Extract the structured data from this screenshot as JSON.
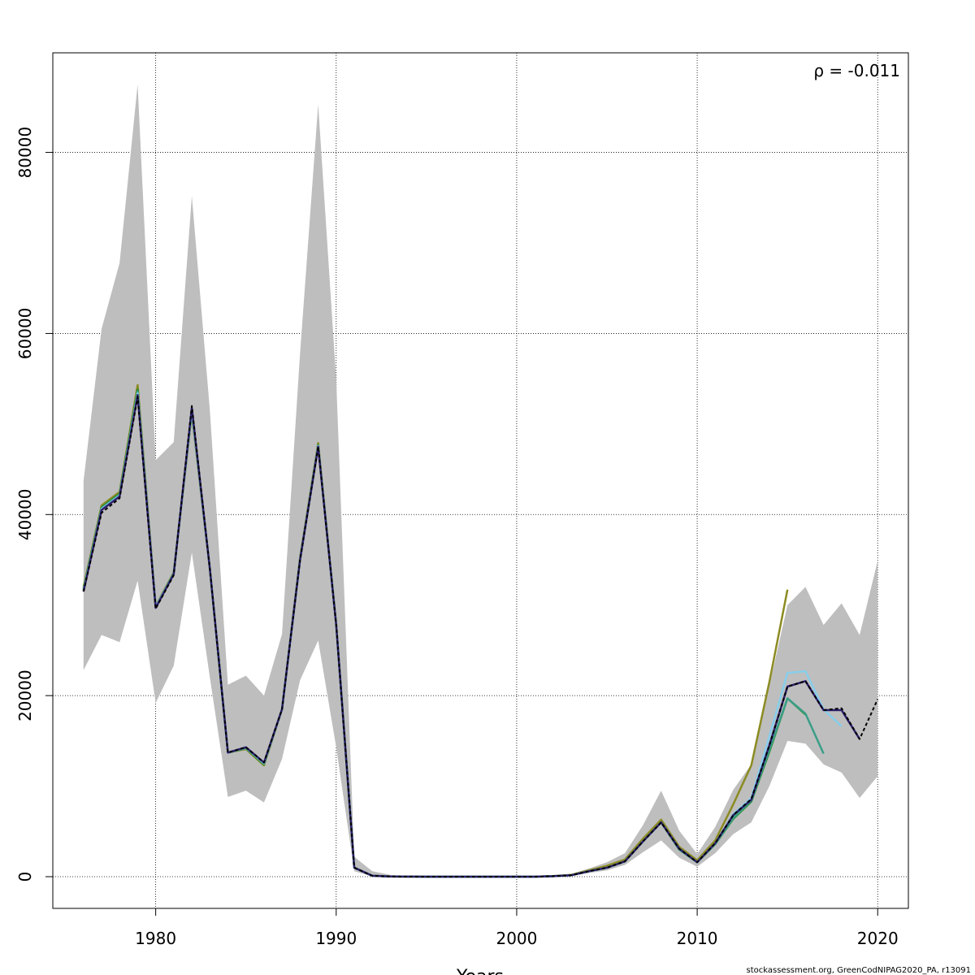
{
  "chart_data": {
    "type": "line",
    "title": "",
    "xlabel": "Years",
    "ylabel": "",
    "xlim": [
      1974.3,
      2021.7
    ],
    "ylim": [
      -3500,
      91000
    ],
    "xticks": [
      1980,
      1990,
      2000,
      2010,
      2020
    ],
    "yticks": [
      0,
      20000,
      40000,
      60000,
      80000
    ],
    "grid": true,
    "annotation": "ρ = -0.011",
    "footer": "stockassessment.org, GreenCodNIPAG2020_PA, r13091",
    "band": {
      "color": "#bebebe",
      "x": [
        1976,
        1977,
        1978,
        1979,
        1980,
        1981,
        1982,
        1983,
        1984,
        1985,
        1986,
        1987,
        1988,
        1989,
        1990,
        1991,
        1992,
        1993,
        1994,
        1995,
        1996,
        1997,
        1998,
        1999,
        2000,
        2001,
        2002,
        2003,
        2004,
        2005,
        2006,
        2007,
        2008,
        2009,
        2010,
        2011,
        2012,
        2013,
        2014,
        2015,
        2016,
        2017,
        2018,
        2019,
        2020
      ],
      "lower": [
        22800,
        26700,
        25900,
        32700,
        19200,
        23300,
        35800,
        22000,
        8800,
        9500,
        8200,
        13000,
        21700,
        26100,
        14300,
        600,
        20,
        0,
        0,
        0,
        0,
        0,
        0,
        0,
        0,
        0,
        0,
        50,
        400,
        700,
        1300,
        2700,
        4000,
        2100,
        1100,
        2600,
        4700,
        6000,
        10000,
        15000,
        14700,
        12400,
        11500,
        8700,
        11100
      ],
      "upper": [
        43700,
        60500,
        67800,
        87500,
        46000,
        48000,
        75200,
        51500,
        21200,
        22200,
        20000,
        26800,
        57800,
        85300,
        54900,
        2200,
        600,
        200,
        100,
        0,
        0,
        0,
        0,
        0,
        0,
        0,
        100,
        300,
        900,
        1600,
        2600,
        5700,
        9500,
        5100,
        2500,
        5500,
        9600,
        12400,
        21100,
        30000,
        32000,
        27800,
        30200,
        26700,
        34900
      ]
    },
    "series": [
      {
        "color": "#000000",
        "dashed": true,
        "x": [
          1976,
          1977,
          1978,
          1979,
          1980,
          1981,
          1982,
          1983,
          1984,
          1985,
          1986,
          1987,
          1988,
          1989,
          1990,
          1991,
          1992,
          1993,
          1994,
          1995,
          1996,
          1997,
          1998,
          1999,
          2000,
          2001,
          2002,
          2003,
          2004,
          2005,
          2006,
          2007,
          2008,
          2009,
          2010,
          2011,
          2012,
          2013,
          2014,
          2015,
          2016,
          2017,
          2018,
          2019,
          2020
        ],
        "values": [
          31500,
          40200,
          41800,
          53000,
          29600,
          33300,
          52000,
          34000,
          13700,
          14300,
          12600,
          18500,
          35000,
          47500,
          27800,
          1000,
          100,
          20,
          10,
          0,
          0,
          0,
          0,
          0,
          0,
          0,
          50,
          150,
          600,
          1000,
          1700,
          3900,
          6000,
          3100,
          1600,
          3700,
          6800,
          8600,
          14500,
          21000,
          21600,
          18400,
          18600,
          15200,
          19600
        ]
      },
      {
        "color": "#2e1f6e",
        "dashed": false,
        "x": [
          1976,
          1977,
          1978,
          1979,
          1980,
          1981,
          1982,
          1983,
          1984,
          1985,
          1986,
          1987,
          1988,
          1989,
          1990,
          1991,
          1992,
          1993,
          1994,
          1995,
          1996,
          1997,
          1998,
          1999,
          2000,
          2001,
          2002,
          2003,
          2004,
          2005,
          2006,
          2007,
          2008,
          2009,
          2010,
          2011,
          2012,
          2013,
          2014,
          2015,
          2016,
          2017,
          2018,
          2019
        ],
        "values": [
          31500,
          40500,
          42000,
          53200,
          29700,
          33400,
          51800,
          34000,
          13700,
          14300,
          12600,
          18500,
          35000,
          47500,
          27800,
          1000,
          100,
          20,
          10,
          0,
          0,
          0,
          0,
          0,
          0,
          0,
          50,
          150,
          600,
          1000,
          1700,
          3900,
          6000,
          3100,
          1600,
          3700,
          6800,
          8500,
          14500,
          21000,
          21600,
          18400,
          18400,
          15200
        ]
      },
      {
        "color": "#87ceeb",
        "dashed": false,
        "x": [
          1976,
          1977,
          1978,
          1979,
          1980,
          1981,
          1982,
          1983,
          1984,
          1985,
          1986,
          1987,
          1988,
          1989,
          1990,
          1991,
          1992,
          1993,
          1994,
          1995,
          1996,
          1997,
          1998,
          1999,
          2000,
          2001,
          2002,
          2003,
          2004,
          2005,
          2006,
          2007,
          2008,
          2009,
          2010,
          2011,
          2012,
          2013,
          2014,
          2015,
          2016,
          2017,
          2018
        ],
        "values": [
          31600,
          40600,
          42100,
          53400,
          29800,
          33400,
          51600,
          34000,
          13700,
          14300,
          12500,
          18500,
          35000,
          47600,
          27800,
          1000,
          100,
          20,
          10,
          0,
          0,
          0,
          0,
          0,
          0,
          0,
          50,
          150,
          600,
          1000,
          1700,
          3900,
          6000,
          3100,
          1600,
          3700,
          6900,
          8700,
          15500,
          22500,
          22700,
          18500,
          16600
        ]
      },
      {
        "color": "#3a9e88",
        "dashed": false,
        "x": [
          1976,
          1977,
          1978,
          1979,
          1980,
          1981,
          1982,
          1983,
          1984,
          1985,
          1986,
          1987,
          1988,
          1989,
          1990,
          1991,
          1992,
          1993,
          1994,
          1995,
          1996,
          1997,
          1998,
          1999,
          2000,
          2001,
          2002,
          2003,
          2004,
          2005,
          2006,
          2007,
          2008,
          2009,
          2010,
          2011,
          2012,
          2013,
          2014,
          2015,
          2016,
          2017
        ],
        "values": [
          31700,
          40700,
          42200,
          53600,
          29800,
          33500,
          51500,
          34000,
          13700,
          14200,
          12500,
          18500,
          35000,
          47600,
          27800,
          1000,
          100,
          20,
          10,
          0,
          0,
          0,
          0,
          0,
          0,
          0,
          50,
          150,
          600,
          1000,
          1700,
          3900,
          6000,
          3000,
          1600,
          3600,
          6500,
          8400,
          14000,
          19700,
          18000,
          13600
        ]
      },
      {
        "color": "#228b22",
        "dashed": false,
        "x": [
          1976,
          1977,
          1978,
          1979,
          1980,
          1981,
          1982,
          1983,
          1984,
          1985,
          1986,
          1987,
          1988,
          1989,
          1990,
          1991,
          1992,
          1993,
          1994,
          1995,
          1996,
          1997,
          1998,
          1999,
          2000,
          2001,
          2002,
          2003,
          2004,
          2005,
          2006,
          2007,
          2008,
          2009,
          2010,
          2011,
          2012,
          2013,
          2014,
          2015,
          2016
        ],
        "values": [
          31800,
          40800,
          42300,
          53800,
          29800,
          33500,
          51400,
          34000,
          13700,
          14200,
          12400,
          18500,
          35100,
          47700,
          27800,
          1000,
          100,
          20,
          10,
          0,
          0,
          0,
          0,
          0,
          0,
          0,
          50,
          150,
          600,
          1000,
          1700,
          3900,
          6000,
          3000,
          1600,
          3600,
          6400,
          8300,
          13800,
          19700,
          17900
        ]
      },
      {
        "color": "#8b8b22",
        "dashed": false,
        "x": [
          1976,
          1977,
          1978,
          1979,
          1980,
          1981,
          1982,
          1983,
          1984,
          1985,
          1986,
          1987,
          1988,
          1989,
          1990,
          1991,
          1992,
          1993,
          1994,
          1995,
          1996,
          1997,
          1998,
          1999,
          2000,
          2001,
          2002,
          2003,
          2004,
          2005,
          2006,
          2007,
          2008,
          2009,
          2010,
          2011,
          2012,
          2013,
          2014,
          2015
        ],
        "values": [
          32000,
          41000,
          42500,
          54300,
          29900,
          33600,
          51200,
          34000,
          13700,
          14100,
          12300,
          18500,
          35200,
          47900,
          27900,
          1000,
          100,
          20,
          10,
          0,
          0,
          0,
          0,
          0,
          0,
          0,
          60,
          200,
          700,
          1200,
          1900,
          4200,
          6300,
          3300,
          1800,
          4000,
          8000,
          12300,
          21500,
          31700
        ]
      }
    ]
  }
}
